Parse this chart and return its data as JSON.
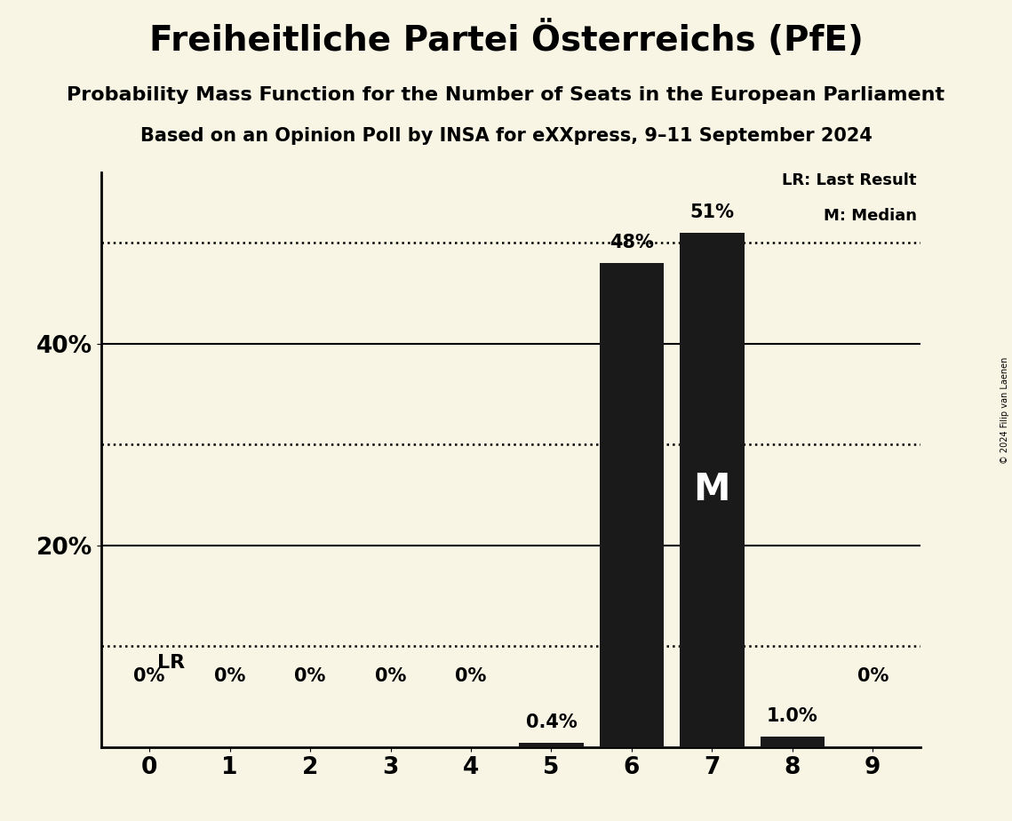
{
  "title": "Freiheitliche Partei Österreichs (PfE)",
  "subtitle": "Probability Mass Function for the Number of Seats in the European Parliament",
  "subsubtitle": "Based on an Opinion Poll by INSA for eXXpress, 9–11 September 2024",
  "copyright": "© 2024 Filip van Laenen",
  "categories": [
    0,
    1,
    2,
    3,
    4,
    5,
    6,
    7,
    8,
    9
  ],
  "values": [
    0.0,
    0.0,
    0.0,
    0.0,
    0.0,
    0.4,
    48.0,
    51.0,
    1.0,
    0.0
  ],
  "bar_color": "#1a1a1a",
  "background_color": "#f8f5e4",
  "label_texts": [
    "0%",
    "0%",
    "0%",
    "0%",
    "0%",
    "0.4%",
    "48%",
    "51%",
    "1.0%",
    "0%"
  ],
  "median_seat": 7,
  "last_result_seat": 0,
  "ylim": [
    0,
    57
  ],
  "yticks": [
    20,
    40
  ],
  "ytick_labels": [
    "20%",
    "40%"
  ],
  "solid_lines": [
    20,
    40
  ],
  "dotted_lines": [
    10,
    30,
    50
  ],
  "legend_lr": "LR: Last Result",
  "legend_m": "M: Median",
  "title_fontsize": 28,
  "subtitle_fontsize": 16,
  "subsubtitle_fontsize": 15,
  "label_fontsize": 15,
  "axis_fontsize": 19,
  "median_label_fontsize": 30,
  "lr_label_fontsize": 16
}
